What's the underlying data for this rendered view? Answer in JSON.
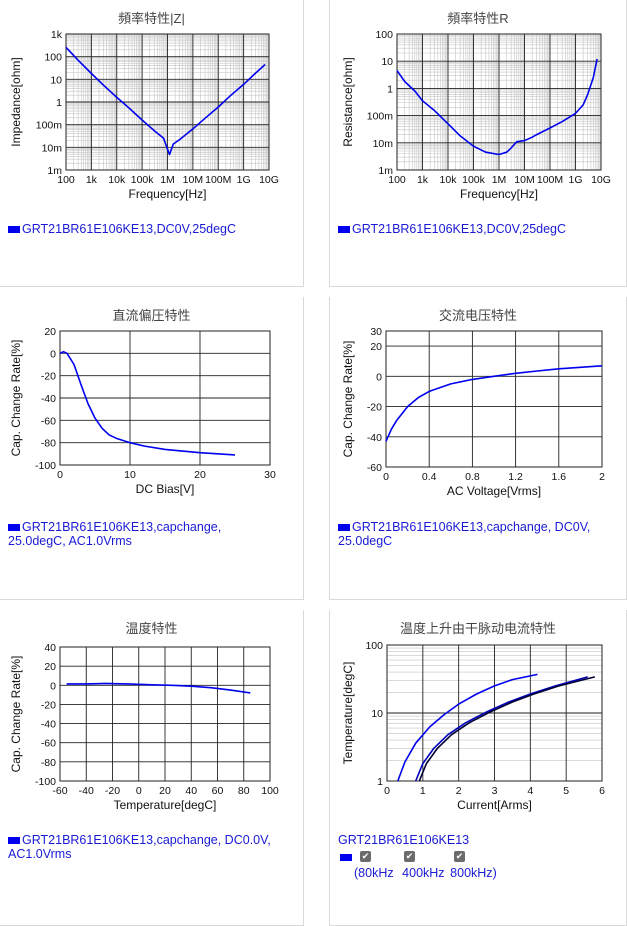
{
  "chart_data": [
    {
      "id": "zf",
      "type": "line",
      "title": "頻率特性|Z|",
      "xlabel": "Frequency[Hz]",
      "ylabel": "Impedance[ohm]",
      "xscale": "log",
      "yscale": "log",
      "xlim": [
        100,
        10000000000
      ],
      "ylim": [
        0.001,
        1000
      ],
      "x_ticks": [
        {
          "v": 100,
          "label": "100"
        },
        {
          "v": 1000,
          "label": "1k"
        },
        {
          "v": 10000,
          "label": "10k"
        },
        {
          "v": 100000,
          "label": "100k"
        },
        {
          "v": 1000000,
          "label": "1M"
        },
        {
          "v": 10000000,
          "label": "10M"
        },
        {
          "v": 100000000,
          "label": "100M"
        },
        {
          "v": 1000000000,
          "label": "1G"
        },
        {
          "v": 10000000000,
          "label": "10G"
        }
      ],
      "y_ticks": [
        {
          "v": 0.001,
          "label": "1m"
        },
        {
          "v": 0.01,
          "label": "10m"
        },
        {
          "v": 0.1,
          "label": "100m"
        },
        {
          "v": 1,
          "label": "1"
        },
        {
          "v": 10,
          "label": "10"
        },
        {
          "v": 100,
          "label": "100"
        },
        {
          "v": 1000,
          "label": "1k"
        }
      ],
      "grid": true,
      "legend": [
        "GRT21BR61E106KE13,DC0V,25degC"
      ],
      "series": [
        {
          "color": "#0000ee",
          "x": [
            100,
            300,
            1000,
            3000,
            10000,
            30000,
            100000,
            300000,
            700000,
            1200000,
            1700000,
            3000000,
            10000000,
            30000000,
            100000000,
            300000000,
            1000000000,
            3000000000,
            7000000000
          ],
          "y": [
            260,
            70,
            18,
            5.5,
            1.6,
            0.55,
            0.16,
            0.055,
            0.025,
            0.0048,
            0.014,
            0.022,
            0.065,
            0.19,
            0.6,
            1.9,
            6,
            19,
            45
          ]
        }
      ]
    },
    {
      "id": "rf",
      "type": "line",
      "title": "頻率特性R",
      "xlabel": "Frequency[Hz]",
      "ylabel": "Resistance[ohm]",
      "xscale": "log",
      "yscale": "log",
      "xlim": [
        100,
        10000000000
      ],
      "ylim": [
        0.001,
        100
      ],
      "x_ticks": [
        {
          "v": 100,
          "label": "100"
        },
        {
          "v": 1000,
          "label": "1k"
        },
        {
          "v": 10000,
          "label": "10k"
        },
        {
          "v": 100000,
          "label": "100k"
        },
        {
          "v": 1000000,
          "label": "1M"
        },
        {
          "v": 10000000,
          "label": "10M"
        },
        {
          "v": 100000000,
          "label": "100M"
        },
        {
          "v": 1000000000,
          "label": "1G"
        },
        {
          "v": 10000000000,
          "label": "10G"
        }
      ],
      "y_ticks": [
        {
          "v": 0.001,
          "label": "1m"
        },
        {
          "v": 0.01,
          "label": "10m"
        },
        {
          "v": 0.1,
          "label": "100m"
        },
        {
          "v": 1,
          "label": "1"
        },
        {
          "v": 10,
          "label": "10"
        },
        {
          "v": 100,
          "label": "100"
        }
      ],
      "grid": true,
      "legend": [
        "GRT21BR61E106KE13,DC0V,25degC"
      ],
      "series": [
        {
          "color": "#0000ee",
          "x": [
            100,
            200,
            500,
            1000,
            3000,
            10000,
            30000,
            100000,
            300000,
            1000000,
            2000000,
            3000000,
            5000000,
            10000000,
            20000000,
            30000000,
            100000000,
            300000000,
            1000000000,
            2000000000,
            3000000000,
            5000000000,
            7000000000
          ],
          "y": [
            4.5,
            1.8,
            0.8,
            0.35,
            0.15,
            0.05,
            0.018,
            0.0075,
            0.0045,
            0.0037,
            0.0045,
            0.0065,
            0.011,
            0.012,
            0.016,
            0.02,
            0.035,
            0.06,
            0.12,
            0.25,
            0.6,
            2.5,
            12
          ]
        }
      ]
    },
    {
      "id": "dc",
      "type": "line",
      "title": "直流偏圧特性",
      "xlabel": "DC Bias[V]",
      "ylabel": "Cap. Change Rate[%]",
      "xlim": [
        0,
        30
      ],
      "ylim": [
        -100,
        20
      ],
      "x_ticks": [
        {
          "v": 0,
          "label": "0"
        },
        {
          "v": 10,
          "label": "10"
        },
        {
          "v": 20,
          "label": "20"
        },
        {
          "v": 30,
          "label": "30"
        }
      ],
      "y_ticks": [
        {
          "v": 20,
          "label": "20"
        },
        {
          "v": 0,
          "label": "0"
        },
        {
          "v": -20,
          "label": "-20"
        },
        {
          "v": -40,
          "label": "-40"
        },
        {
          "v": -60,
          "label": "-60"
        },
        {
          "v": -80,
          "label": "-80"
        },
        {
          "v": -100,
          "label": "-100"
        }
      ],
      "grid": true,
      "legend": [
        "GRT21BR61E106KE13,capchange,",
        "25.0degC, AC1.0Vrms"
      ],
      "series": [
        {
          "color": "#0000ee",
          "x": [
            0,
            0.5,
            1,
            2,
            3,
            4,
            5,
            6,
            7,
            8,
            10,
            12,
            15,
            20,
            25
          ],
          "y": [
            0,
            1.5,
            0,
            -10,
            -28,
            -45,
            -58,
            -67,
            -73,
            -76,
            -80,
            -83,
            -86,
            -89,
            -91
          ]
        }
      ]
    },
    {
      "id": "ac",
      "type": "line",
      "title": "交流电压特性",
      "xlabel": "AC Voltage[Vrms]",
      "ylabel": "Cap. Change Rate[%]",
      "xlim": [
        0,
        2
      ],
      "ylim": [
        -60,
        30
      ],
      "x_ticks": [
        {
          "v": 0,
          "label": "0"
        },
        {
          "v": 0.4,
          "label": "0.4"
        },
        {
          "v": 0.8,
          "label": "0.8"
        },
        {
          "v": 1.2,
          "label": "1.2"
        },
        {
          "v": 1.6,
          "label": "1.6"
        },
        {
          "v": 2,
          "label": "2"
        }
      ],
      "y_ticks": [
        {
          "v": 30,
          "label": "30"
        },
        {
          "v": 20,
          "label": "20"
        },
        {
          "v": 0,
          "label": "0"
        },
        {
          "v": -20,
          "label": "-20"
        },
        {
          "v": -40,
          "label": "-40"
        },
        {
          "v": -60,
          "label": "-60"
        }
      ],
      "grid": true,
      "legend": [
        "GRT21BR61E106KE13,capchange, DC0V,",
        "25.0degC"
      ],
      "series": [
        {
          "color": "#0000ee",
          "x": [
            0,
            0.05,
            0.1,
            0.2,
            0.3,
            0.4,
            0.6,
            0.8,
            1.0,
            1.2,
            1.4,
            1.6,
            1.8,
            2.0
          ],
          "y": [
            -43,
            -35,
            -29,
            -20,
            -14,
            -10,
            -5,
            -2,
            0,
            2,
            3.5,
            5,
            6,
            7
          ]
        }
      ]
    },
    {
      "id": "temp",
      "type": "line",
      "title": "温度特性",
      "xlabel": "Temperature[degC]",
      "ylabel": "Cap. Change Rate[%]",
      "xlim": [
        -60,
        100
      ],
      "ylim": [
        -100,
        40
      ],
      "x_ticks": [
        {
          "v": -60,
          "label": "-60"
        },
        {
          "v": -40,
          "label": "-40"
        },
        {
          "v": -20,
          "label": "-20"
        },
        {
          "v": 0,
          "label": "0"
        },
        {
          "v": 20,
          "label": "20"
        },
        {
          "v": 40,
          "label": "40"
        },
        {
          "v": 60,
          "label": "60"
        },
        {
          "v": 80,
          "label": "80"
        },
        {
          "v": 100,
          "label": "100"
        }
      ],
      "y_ticks": [
        {
          "v": 40,
          "label": "40"
        },
        {
          "v": 20,
          "label": "20"
        },
        {
          "v": 0,
          "label": "0"
        },
        {
          "v": -20,
          "label": "-20"
        },
        {
          "v": -40,
          "label": "-40"
        },
        {
          "v": -60,
          "label": "-60"
        },
        {
          "v": -80,
          "label": "-80"
        },
        {
          "v": -100,
          "label": "-100"
        }
      ],
      "grid": true,
      "legend": [
        "GRT21BR61E106KE13,capchange, DC0.0V,",
        "AC1.0Vrms"
      ],
      "series": [
        {
          "color": "#0000ee",
          "x": [
            -55,
            -40,
            -25,
            -10,
            0,
            10,
            25,
            40,
            55,
            70,
            85
          ],
          "y": [
            1.5,
            1.5,
            2,
            1.5,
            1,
            0.5,
            0,
            -1,
            -2.5,
            -5,
            -8
          ]
        }
      ]
    },
    {
      "id": "ripple",
      "type": "line",
      "title": "温度上升由干脉动电流特性",
      "xlabel": "Current[Arms]",
      "ylabel": "Temperature[degC]",
      "yscale": "log",
      "xlim": [
        0,
        6
      ],
      "ylim": [
        1,
        100
      ],
      "x_ticks": [
        {
          "v": 0,
          "label": "0"
        },
        {
          "v": 1,
          "label": "1"
        },
        {
          "v": 2,
          "label": "2"
        },
        {
          "v": 3,
          "label": "3"
        },
        {
          "v": 4,
          "label": "4"
        },
        {
          "v": 5,
          "label": "5"
        },
        {
          "v": 6,
          "label": "6"
        }
      ],
      "y_ticks": [
        {
          "v": 1,
          "label": "1"
        },
        {
          "v": 10,
          "label": "10"
        },
        {
          "v": 100,
          "label": "100"
        }
      ],
      "grid": true,
      "legend_title": "GRT21BR61E106KE13",
      "legend_items": [
        "80kHz",
        "400kHz",
        "800kHz"
      ],
      "legend_open": "(",
      "legend_close": ")",
      "series": [
        {
          "name": "80kHz",
          "color": "#0000ee",
          "x": [
            0.3,
            0.5,
            0.8,
            1.2,
            1.6,
            2.0,
            2.5,
            3.0,
            3.5,
            4.2
          ],
          "y": [
            1,
            1.9,
            3.6,
            6.3,
            9.5,
            13.5,
            19,
            25,
            31,
            37
          ]
        },
        {
          "name": "400kHz",
          "color": "#0000bb",
          "x": [
            0.8,
            1.0,
            1.3,
            1.7,
            2.2,
            2.8,
            3.4,
            4.0,
            4.7,
            5.6
          ],
          "y": [
            1,
            1.8,
            3.0,
            4.8,
            7.2,
            10.5,
            14.5,
            19,
            25,
            34
          ]
        },
        {
          "name": "800kHz",
          "color": "#000033",
          "x": [
            0.9,
            1.1,
            1.4,
            1.8,
            2.3,
            2.9,
            3.5,
            4.1,
            4.8,
            5.8
          ],
          "y": [
            1,
            1.8,
            3.0,
            4.8,
            7.2,
            10.5,
            14.5,
            19,
            25,
            34
          ]
        }
      ]
    }
  ]
}
